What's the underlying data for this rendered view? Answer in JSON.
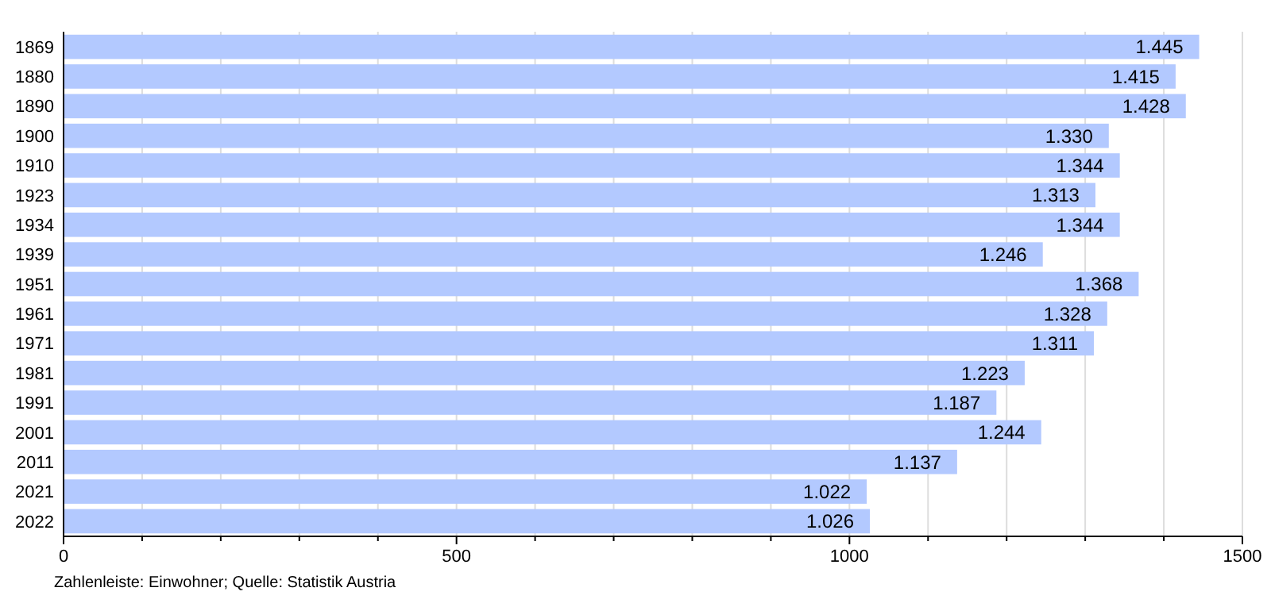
{
  "chart_data": {
    "type": "bar",
    "orientation": "horizontal",
    "categories": [
      "1869",
      "1880",
      "1890",
      "1900",
      "1910",
      "1923",
      "1934",
      "1939",
      "1951",
      "1961",
      "1971",
      "1981",
      "1991",
      "2001",
      "2011",
      "2021",
      "2022"
    ],
    "values": [
      1445,
      1415,
      1428,
      1330,
      1344,
      1313,
      1344,
      1246,
      1368,
      1328,
      1311,
      1223,
      1187,
      1244,
      1137,
      1022,
      1026
    ],
    "value_labels": [
      "1.445",
      "1.415",
      "1.428",
      "1.330",
      "1.344",
      "1.313",
      "1.344",
      "1.246",
      "1.368",
      "1.328",
      "1.311",
      "1.223",
      "1.187",
      "1.244",
      "1.137",
      "1.022",
      "1.026"
    ],
    "color": "#b3c9ff",
    "xlim": [
      0,
      1500
    ],
    "xticks": [
      0,
      {
        "value": 100,
        "label": null
      },
      {
        "value": 200,
        "label": null
      },
      {
        "value": 300,
        "label": null
      },
      {
        "value": 400,
        "label": null
      },
      500,
      {
        "value": 600,
        "label": null
      },
      {
        "value": 700,
        "label": null
      },
      {
        "value": 800,
        "label": null
      },
      {
        "value": 900,
        "label": null
      },
      1000,
      {
        "value": 1100,
        "label": null
      },
      {
        "value": 1200,
        "label": null
      },
      {
        "value": 1300,
        "label": null
      },
      {
        "value": 1400,
        "label": null
      },
      1500
    ],
    "grid": "x",
    "annotations": [
      "Zahlenleiste: Einwohner; Quelle: Statistik Austria"
    ]
  }
}
